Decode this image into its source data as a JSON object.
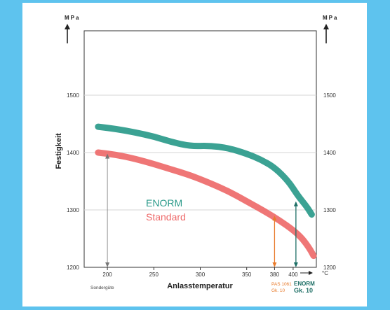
{
  "chart_data": {
    "type": "line",
    "ylabel": "Festigkeit",
    "xlabel": "Anlasstemperatur",
    "y_unit": "MPa",
    "x_unit": "°C",
    "ylim": [
      1200,
      1600
    ],
    "xlim": [
      175,
      425
    ],
    "yticks": [
      1200,
      1300,
      1400,
      1500
    ],
    "xticks": [
      200,
      250,
      300,
      350,
      380,
      400
    ],
    "grid": true,
    "series": [
      {
        "name": "ENORM",
        "color": "#2a9a8a",
        "x": [
          190,
          210,
          230,
          250,
          270,
          290,
          310,
          330,
          350,
          365,
          380,
          395,
          405,
          415,
          420
        ],
        "y": [
          1445,
          1441,
          1435,
          1428,
          1418,
          1411,
          1412,
          1408,
          1398,
          1388,
          1374,
          1350,
          1325,
          1305,
          1292
        ]
      },
      {
        "name": "Standard",
        "color": "#ee6a6a",
        "x": [
          190,
          210,
          230,
          250,
          270,
          290,
          310,
          330,
          350,
          370,
          385,
          400,
          410,
          418,
          422
        ],
        "y": [
          1400,
          1396,
          1389,
          1380,
          1370,
          1360,
          1347,
          1333,
          1315,
          1297,
          1282,
          1265,
          1250,
          1232,
          1220
        ]
      }
    ],
    "markers": [
      {
        "x": 200,
        "y": 1398,
        "color": "#777777",
        "style": "double-arrow"
      },
      {
        "x": 380,
        "y": 1290,
        "color": "#e87a2a",
        "style": "double-arrow"
      },
      {
        "x": 403,
        "y": 1315,
        "color": "#1e6f66",
        "style": "double-arrow"
      }
    ],
    "annotations": {
      "left_note": "Sondergüte",
      "pas_line1": "PAS 1061",
      "pas_line2": "Gk. 10",
      "enorm_line1": "ENORM",
      "enorm_line2": "Gk. 10"
    },
    "legend": [
      {
        "label": "ENORM",
        "color": "#2a9a8a"
      },
      {
        "label": "Standard",
        "color": "#ee6a6a"
      }
    ]
  }
}
